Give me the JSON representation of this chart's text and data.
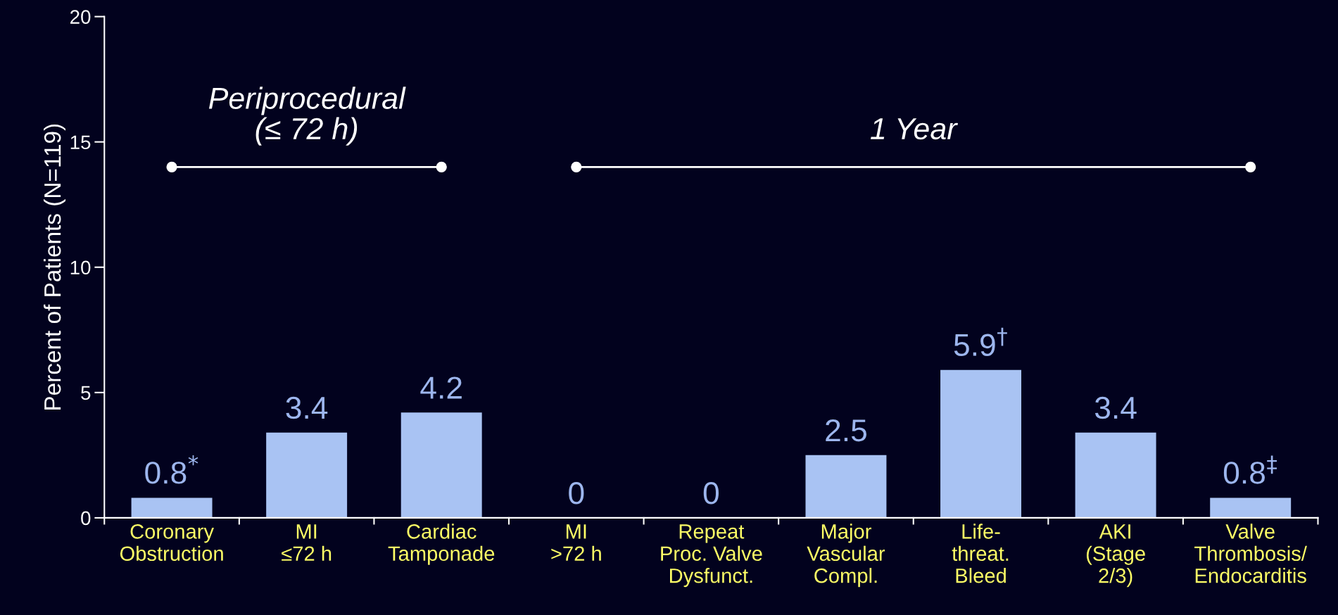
{
  "chart_data": {
    "type": "bar",
    "ylabel": "Percent of Patients (N=119)",
    "categories": [
      "Coronary\nObstruction",
      "MI\n≤72 h",
      "Cardiac\nTamponade",
      "MI\n>72 h",
      "Repeat\nProc. Valve\nDysfunct.",
      "Major\nVascular\nCompl.",
      "Life-\nthreat.\nBleed",
      "AKI\n(Stage\n2/3)",
      "Valve\nThrombosis/\nEndocarditis"
    ],
    "series": [
      {
        "color": "#a9c3f3",
        "values": [
          0.8,
          3.4,
          4.2,
          0,
          0,
          2.5,
          5.9,
          3.4,
          0.8
        ],
        "value_labels": [
          "0.8$^{*}$",
          "3.4",
          "4.2",
          "0",
          "0",
          "2.5",
          "5.9$^{†}$",
          "3.4",
          "0.8$^{‡}$"
        ]
      },
      {
        "type": "line",
        "color": "#ffffff",
        "values": [
          14,
          14,
          14,
          null,
          null,
          null,
          null,
          null,
          null
        ]
      },
      {
        "type": "line",
        "color": "#ffffff",
        "values": [
          null,
          null,
          null,
          14,
          14,
          14,
          14,
          14,
          14
        ]
      }
    ],
    "annotations": [
      "Periprocedural\n(≤ 72 h)",
      "1 Year"
    ],
    "ylim": [
      0,
      20
    ],
    "yticks": [
      0,
      5,
      10,
      15,
      20
    ],
    "grid": false,
    "legend": false
  }
}
